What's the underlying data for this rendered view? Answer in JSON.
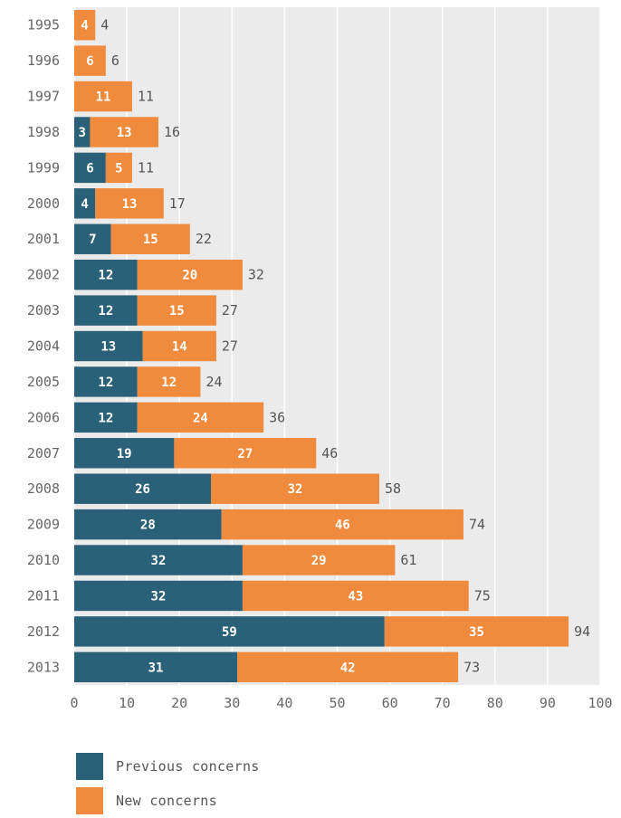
{
  "chart_data": {
    "type": "bar",
    "orientation": "horizontal",
    "stacked": true,
    "categories": [
      "1995",
      "1996",
      "1997",
      "1998",
      "1999",
      "2000",
      "2001",
      "2002",
      "2003",
      "2004",
      "2005",
      "2006",
      "2007",
      "2008",
      "2009",
      "2010",
      "2011",
      "2012",
      "2013"
    ],
    "series": [
      {
        "name": "Previous concerns",
        "color": "#2a6178",
        "values": [
          null,
          null,
          null,
          3,
          6,
          4,
          7,
          12,
          12,
          13,
          12,
          12,
          19,
          26,
          28,
          32,
          32,
          59,
          31
        ]
      },
      {
        "name": "New concerns",
        "color": "#f08a3c",
        "values": [
          4,
          6,
          11,
          13,
          5,
          13,
          15,
          20,
          15,
          14,
          12,
          24,
          27,
          32,
          46,
          29,
          43,
          35,
          42
        ]
      }
    ],
    "totals": [
      4,
      6,
      11,
      16,
      11,
      17,
      22,
      32,
      27,
      27,
      24,
      36,
      46,
      58,
      74,
      61,
      75,
      94,
      73
    ],
    "xlim": [
      0,
      100
    ],
    "xticks": [
      0,
      10,
      20,
      30,
      40,
      50,
      60,
      70,
      80,
      90,
      100
    ],
    "grid": true,
    "legend_position": "bottom-left",
    "background_color": "#ebebeb",
    "grid_color": "#ffffff"
  }
}
